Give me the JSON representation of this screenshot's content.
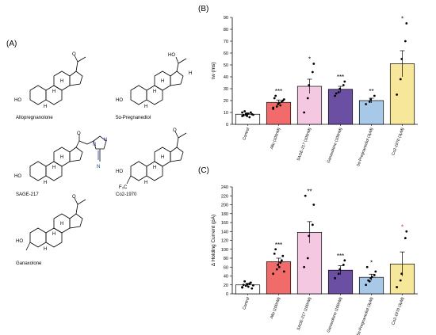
{
  "panels": {
    "a": "(A)",
    "b": "(B)",
    "c": "(C)"
  },
  "molecules": [
    {
      "name": "Allopregnanolone"
    },
    {
      "name": "5α-Pregnanediol"
    },
    {
      "name": "SAGE-217"
    },
    {
      "name": "Co2-1970"
    },
    {
      "name": "Ganaxolone"
    }
  ],
  "atoms": {
    "ho": "HO",
    "oh": "HO",
    "h": "H",
    "o": "O",
    "n": "N",
    "cf3": "F₃C",
    "stereo_h": "H"
  },
  "colors": {
    "control": "#ffffff",
    "allo": "#f26b6b",
    "sage": "#f5c8e2",
    "ganaxolone": "#6a4fa3",
    "pregnanediol": "#a8c8e8",
    "co2": "#f6e79a"
  },
  "chart_data": [
    {
      "type": "bar",
      "panel": "(B)",
      "categories": [
        "Control",
        "Allo (100nM)",
        "SAGE-217 (100nM)",
        "Ganaxolone (100nM)",
        "5α-Pregnanediol (3μM)",
        "Co2-1970 (3μM)"
      ],
      "values": [
        8.5,
        18.5,
        32,
        29.5,
        20,
        51
      ],
      "errors": [
        0.8,
        2,
        6,
        2.5,
        2,
        11
      ],
      "significance": [
        "",
        "***",
        "*",
        "***",
        "**",
        "*"
      ],
      "points": [
        [
          7,
          8,
          9,
          10,
          8.5,
          7.5,
          11,
          9,
          6,
          8,
          10,
          9,
          7
        ],
        [
          13,
          15,
          17,
          19,
          20,
          22,
          24,
          18,
          16,
          21,
          14
        ],
        [
          10,
          22,
          33,
          44,
          51
        ],
        [
          24,
          27,
          30,
          33,
          36,
          26
        ],
        [
          17,
          19,
          21,
          24
        ],
        [
          25,
          38,
          55,
          70,
          85
        ]
      ],
      "xlabel": "",
      "ylabel": "τw (ms)",
      "ylim": [
        0,
        90
      ],
      "yticks": [
        "0",
        "10",
        "20",
        "30",
        "40",
        "50",
        "60",
        "70",
        "80",
        "90"
      ]
    },
    {
      "type": "bar",
      "panel": "(C)",
      "categories": [
        "Control",
        "Allo (100nM)",
        "SAGE-217 (100nM)",
        "Ganaxolone (100nM)",
        "5α-Pregnanediol (3μM)",
        "Co2-1970 (3μM)"
      ],
      "values": [
        20,
        72,
        138,
        53,
        37,
        67
      ],
      "errors": [
        3,
        8,
        24,
        10,
        7,
        27
      ],
      "significance": [
        "",
        "***",
        "**",
        "***",
        "*",
        "*"
      ],
      "points": [
        [
          15,
          18,
          22,
          25,
          12,
          20,
          28,
          16,
          23,
          19,
          14
        ],
        [
          45,
          55,
          65,
          75,
          85,
          90,
          100,
          60,
          70,
          50
        ],
        [
          60,
          80,
          130,
          155,
          200,
          220
        ],
        [
          35,
          45,
          55,
          65,
          75
        ],
        [
          20,
          28,
          35,
          42,
          50,
          60,
          30,
          38
        ],
        [
          15,
          30,
          45,
          125,
          140
        ]
      ],
      "xlabel": "",
      "ylabel": "Δ Holding Current (pA)",
      "ylim": [
        0,
        240
      ],
      "yticks": [
        "0",
        "20",
        "40",
        "60",
        "80",
        "100",
        "120",
        "140",
        "160",
        "180",
        "200",
        "220",
        "240"
      ]
    }
  ]
}
